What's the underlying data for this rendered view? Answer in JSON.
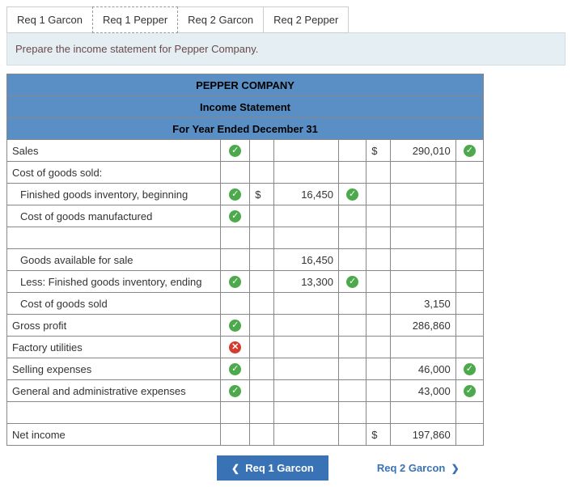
{
  "tabs": {
    "t0": "Req 1 Garcon",
    "t1": "Req 1 Pepper",
    "t2": "Req 2 Garcon",
    "t3": "Req 2 Pepper"
  },
  "instruction": "Prepare the income statement for Pepper Company.",
  "header": {
    "company": "PEPPER COMPANY",
    "title": "Income Statement",
    "period": "For Year Ended December 31"
  },
  "rows": {
    "sales": {
      "label": "Sales",
      "mark": "check",
      "col2_dollar": "$",
      "col2_val": "290,010",
      "col2_mark": "check"
    },
    "cogs_hdr": {
      "label": "Cost of goods sold:"
    },
    "fg_beg": {
      "label": "Finished goods inventory, beginning",
      "mark": "check",
      "col1_dollar": "$",
      "col1_val": "16,450",
      "col1_mark": "check"
    },
    "com": {
      "label": "Cost of goods manufactured",
      "mark": "check"
    },
    "gafs": {
      "label": "Goods available for sale",
      "col1_val": "16,450"
    },
    "fg_end": {
      "label": "Less: Finished goods inventory, ending",
      "mark": "check",
      "col1_val": "13,300",
      "col1_mark": "check"
    },
    "cogs": {
      "label": "Cost of goods sold",
      "col2_val": "3,150"
    },
    "gross": {
      "label": "Gross profit",
      "mark": "check",
      "col2_val": "286,860"
    },
    "factory": {
      "label": "Factory utilities",
      "mark": "cross"
    },
    "selling": {
      "label": "Selling expenses",
      "mark": "check",
      "col2_val": "46,000",
      "col2_mark": "check"
    },
    "ga": {
      "label": "General and administrative expenses",
      "mark": "check",
      "col2_val": "43,000",
      "col2_mark": "check"
    },
    "net": {
      "label": "Net income",
      "col2_dollar": "$",
      "col2_val": "197,860"
    }
  },
  "nav": {
    "prev": "Req 1 Garcon",
    "next": "Req 2 Garcon"
  },
  "colors": {
    "header_bg": "#5a8fc5",
    "instruction_bg": "#e4eef3",
    "check_bg": "#4ca94c",
    "cross_bg": "#d63a2e",
    "button_bg": "#3973b5"
  }
}
